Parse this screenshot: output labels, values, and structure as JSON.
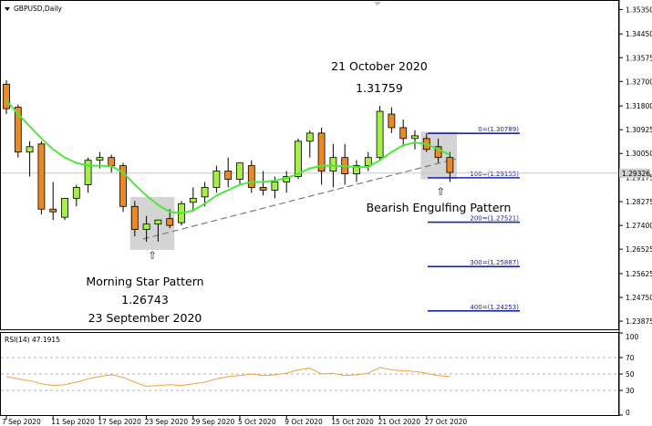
{
  "window": {
    "symbol_label": "GBPUSD,Daily"
  },
  "rsi_panel": {
    "label": "RSI(14) 47.1915",
    "levels": [
      100,
      70,
      50,
      30,
      0
    ],
    "bands": [
      30,
      50,
      70
    ]
  },
  "colors": {
    "bull": "#a6ee4a",
    "bear": "#e98a27",
    "ma": "#4ce93a",
    "rsi": "#f0a240",
    "fib": "#1c2a9c",
    "price_tag": "#cfcfcf",
    "box": "#d4d4d4",
    "trend": "#7a7a7a"
  },
  "chart_data": [
    {
      "type": "candlestick",
      "title": "GBPUSD,Daily",
      "y_axis_labels": [
        "1.35350",
        "1.34450",
        "1.33575",
        "1.32700",
        "1.31800",
        "1.30925",
        "1.30050",
        "1.29175",
        "1.28275",
        "1.27400",
        "1.26525",
        "1.25625",
        "1.24750",
        "1.23875"
      ],
      "ylim": [
        1.23575,
        1.357
      ],
      "x_tick_labels": [
        "7 Sep 2020",
        "11 Sep 2020",
        "17 Sep 2020",
        "23 Sep 2020",
        "29 Sep 2020",
        "5 Oct 2020",
        "9 Oct 2020",
        "15 Oct 2020",
        "21 Oct 2020",
        "27 Oct 2020"
      ],
      "x_tick_index": [
        0,
        4,
        8,
        12,
        16,
        20,
        24,
        28,
        32,
        36
      ],
      "current_price": "1.29326",
      "current_price_value": 1.29326,
      "ma_color_note": "green moving average",
      "candles": [
        {
          "o": 1.326,
          "h": 1.3275,
          "l": 1.315,
          "c": 1.317
        },
        {
          "o": 1.3175,
          "h": 1.3185,
          "l": 1.299,
          "c": 1.301
        },
        {
          "o": 1.301,
          "h": 1.305,
          "l": 1.292,
          "c": 1.303
        },
        {
          "o": 1.304,
          "h": 1.305,
          "l": 1.278,
          "c": 1.28
        },
        {
          "o": 1.28,
          "h": 1.29,
          "l": 1.276,
          "c": 1.279
        },
        {
          "o": 1.277,
          "h": 1.284,
          "l": 1.276,
          "c": 1.284
        },
        {
          "o": 1.284,
          "h": 1.289,
          "l": 1.281,
          "c": 1.288
        },
        {
          "o": 1.289,
          "h": 1.299,
          "l": 1.286,
          "c": 1.298
        },
        {
          "o": 1.298,
          "h": 1.301,
          "l": 1.295,
          "c": 1.299
        },
        {
          "o": 1.299,
          "h": 1.3,
          "l": 1.2935,
          "c": 1.296
        },
        {
          "o": 1.296,
          "h": 1.297,
          "l": 1.279,
          "c": 1.281
        },
        {
          "o": 1.281,
          "h": 1.283,
          "l": 1.27,
          "c": 1.2725
        },
        {
          "o": 1.2725,
          "h": 1.2775,
          "l": 1.268,
          "c": 1.2745
        },
        {
          "o": 1.2745,
          "h": 1.276,
          "l": 1.268,
          "c": 1.276
        },
        {
          "o": 1.2765,
          "h": 1.28,
          "l": 1.273,
          "c": 1.274
        },
        {
          "o": 1.275,
          "h": 1.283,
          "l": 1.274,
          "c": 1.282
        },
        {
          "o": 1.2825,
          "h": 1.288,
          "l": 1.279,
          "c": 1.284
        },
        {
          "o": 1.2845,
          "h": 1.29,
          "l": 1.281,
          "c": 1.288
        },
        {
          "o": 1.288,
          "h": 1.296,
          "l": 1.286,
          "c": 1.294
        },
        {
          "o": 1.294,
          "h": 1.299,
          "l": 1.288,
          "c": 1.291
        },
        {
          "o": 1.291,
          "h": 1.297,
          "l": 1.289,
          "c": 1.297
        },
        {
          "o": 1.296,
          "h": 1.298,
          "l": 1.286,
          "c": 1.288
        },
        {
          "o": 1.288,
          "h": 1.294,
          "l": 1.285,
          "c": 1.287
        },
        {
          "o": 1.287,
          "h": 1.292,
          "l": 1.284,
          "c": 1.29
        },
        {
          "o": 1.29,
          "h": 1.294,
          "l": 1.286,
          "c": 1.292
        },
        {
          "o": 1.292,
          "h": 1.306,
          "l": 1.291,
          "c": 1.305
        },
        {
          "o": 1.305,
          "h": 1.309,
          "l": 1.299,
          "c": 1.308
        },
        {
          "o": 1.308,
          "h": 1.31,
          "l": 1.289,
          "c": 1.294
        },
        {
          "o": 1.294,
          "h": 1.304,
          "l": 1.288,
          "c": 1.299
        },
        {
          "o": 1.299,
          "h": 1.304,
          "l": 1.289,
          "c": 1.293
        },
        {
          "o": 1.293,
          "h": 1.298,
          "l": 1.29,
          "c": 1.296
        },
        {
          "o": 1.296,
          "h": 1.301,
          "l": 1.294,
          "c": 1.299
        },
        {
          "o": 1.299,
          "h": 1.318,
          "l": 1.298,
          "c": 1.316
        },
        {
          "o": 1.315,
          "h": 1.3175,
          "l": 1.308,
          "c": 1.31
        },
        {
          "o": 1.31,
          "h": 1.313,
          "l": 1.303,
          "c": 1.306
        },
        {
          "o": 1.306,
          "h": 1.309,
          "l": 1.302,
          "c": 1.307
        },
        {
          "o": 1.306,
          "h": 1.308,
          "l": 1.301,
          "c": 1.302
        },
        {
          "o": 1.303,
          "h": 1.306,
          "l": 1.297,
          "c": 1.299
        },
        {
          "o": 1.299,
          "h": 1.301,
          "l": 1.29,
          "c": 1.2935
        }
      ],
      "ma": [
        1.32,
        1.315,
        1.3105,
        1.306,
        1.302,
        1.299,
        1.297,
        1.296,
        1.296,
        1.2958,
        1.2935,
        1.289,
        1.285,
        1.2815,
        1.279,
        1.2785,
        1.2795,
        1.282,
        1.285,
        1.287,
        1.289,
        1.29,
        1.29,
        1.2905,
        1.2915,
        1.293,
        1.295,
        1.296,
        1.296,
        1.2958,
        1.2955,
        1.2955,
        1.298,
        1.301,
        1.3035,
        1.3045,
        1.304,
        1.302,
        1.3
      ],
      "trendline": [
        {
          "i": 11.7,
          "v": 1.269
        },
        {
          "i": 38.5,
          "v": 1.2985
        }
      ],
      "pattern_boxes": [
        {
          "i0": 10.6,
          "i1": 14.4,
          "v0": 1.2845,
          "v1": 1.265
        },
        {
          "i0": 35.5,
          "i1": 38.6,
          "v0": 1.3085,
          "v1": 1.291
        }
      ],
      "arrows": [
        {
          "i": 12.5,
          "v": 1.2645
        },
        {
          "i": 37.2,
          "v": 1.288
        }
      ],
      "fib_levels": [
        {
          "label": "0=(1.30789)",
          "value": 1.30789
        },
        {
          "label": "100=(1.29155)",
          "value": 1.29155
        },
        {
          "label": "200=(1.27521)",
          "value": 1.27521
        },
        {
          "label": "300=(1.25887)",
          "value": 1.25887
        },
        {
          "label": "400=(1.24253)",
          "value": 1.24253
        }
      ],
      "annotations": {
        "top": {
          "date": "21 October 2020",
          "price": "1.31759"
        },
        "bottom": {
          "name": "Morning Star Pattern",
          "price": "1.26743",
          "date": "23 September 2020"
        },
        "bearish": {
          "name": "Bearish Engulfing Pattern"
        }
      },
      "arrow_glyph": "⇧"
    },
    {
      "type": "line",
      "name": "RSI(14) 47.1915",
      "ylim": [
        0,
        100
      ],
      "values": [
        47,
        44,
        42,
        38,
        36,
        37,
        40,
        44,
        47,
        49,
        46,
        40,
        35,
        36,
        37,
        36,
        38,
        40,
        44,
        47,
        48,
        50,
        48,
        49,
        51,
        55,
        57,
        50,
        51,
        48,
        49,
        51,
        58,
        55,
        54,
        53,
        51,
        48,
        47
      ]
    }
  ]
}
